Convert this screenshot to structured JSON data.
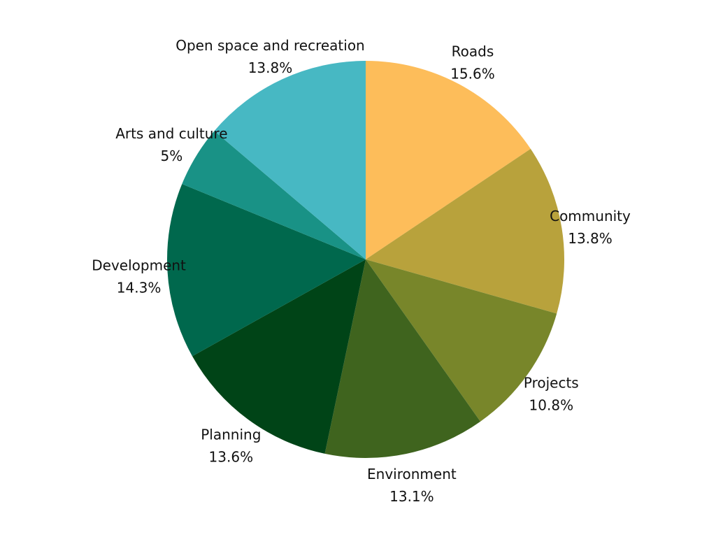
{
  "chart_data": {
    "type": "pie",
    "title": "",
    "start_angle_deg": 0,
    "direction": "clockwise",
    "legend": "none",
    "slices": [
      {
        "label": "Roads",
        "value": 15.6,
        "value_label": "15.6%",
        "color": "#FDBD5A"
      },
      {
        "label": "Community",
        "value": 13.8,
        "value_label": "13.8%",
        "color": "#B8A23C"
      },
      {
        "label": "Projects",
        "value": 10.8,
        "value_label": "10.8%",
        "color": "#78862A"
      },
      {
        "label": "Environment",
        "value": 13.1,
        "value_label": "13.1%",
        "color": "#3F641E"
      },
      {
        "label": "Planning",
        "value": 13.6,
        "value_label": "13.6%",
        "color": "#004417"
      },
      {
        "label": "Development",
        "value": 14.3,
        "value_label": "14.3%",
        "color": "#00684D"
      },
      {
        "label": "Arts and culture",
        "value": 5,
        "value_label": "5%",
        "color": "#199286"
      },
      {
        "label": "Open space and recreation",
        "value": 13.8,
        "value_label": "13.8%",
        "color": "#47B8C3"
      }
    ]
  }
}
